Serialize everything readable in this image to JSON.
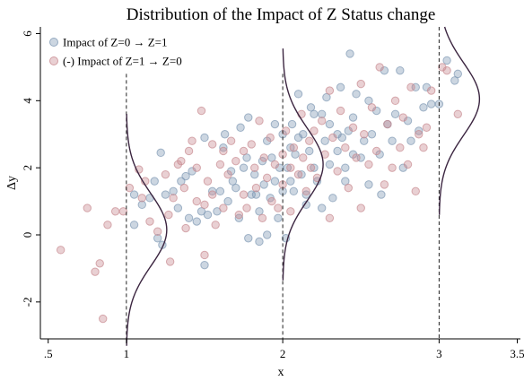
{
  "chart_data": {
    "type": "scatter",
    "title": "Distribution of the Impact of Z Status change",
    "xlabel": "x",
    "ylabel": "Δy",
    "xlim": [
      0.45,
      3.52
    ],
    "ylim": [
      -3.1,
      6.2
    ],
    "x_ticks": [
      0.5,
      1,
      2,
      3,
      3.5
    ],
    "x_tick_labels": [
      ".5",
      "1",
      "2",
      "3",
      "3.5"
    ],
    "y_ticks": [
      -2,
      0,
      2,
      4,
      6
    ],
    "y_tick_labels": [
      "-2",
      "0",
      "2",
      "4",
      "6"
    ],
    "legend_position": "top-left",
    "grid": false,
    "series": [
      {
        "name": "Impact of Z=0 → Z=1",
        "color": "#7f98b4",
        "points": [
          [
            1.05,
            0.3
          ],
          [
            1.05,
            1.2
          ],
          [
            1.1,
            0.9
          ],
          [
            1.15,
            1.1
          ],
          [
            1.18,
            1.6
          ],
          [
            1.2,
            -0.1
          ],
          [
            1.22,
            2.45
          ],
          [
            1.25,
            1.2
          ],
          [
            1.23,
            -0.3
          ],
          [
            1.3,
            1.3
          ],
          [
            1.33,
            0.8
          ],
          [
            1.35,
            1.6
          ],
          [
            1.38,
            1.75
          ],
          [
            1.4,
            0.5
          ],
          [
            1.42,
            1.9
          ],
          [
            1.45,
            0.4
          ],
          [
            1.48,
            0.7
          ],
          [
            1.5,
            2.9
          ],
          [
            1.5,
            -0.9
          ],
          [
            1.52,
            0.6
          ],
          [
            1.55,
            1.3
          ],
          [
            1.58,
            0.7
          ],
          [
            1.6,
            1.3
          ],
          [
            1.62,
            2.6
          ],
          [
            1.63,
            3.0
          ],
          [
            1.65,
            1.0
          ],
          [
            1.67,
            1.9
          ],
          [
            1.68,
            1.6
          ],
          [
            1.7,
            1.4
          ],
          [
            1.72,
            0.5
          ],
          [
            1.73,
            3.2
          ],
          [
            1.75,
            2.0
          ],
          [
            1.77,
            2.3
          ],
          [
            1.78,
            3.5
          ],
          [
            1.78,
            -0.1
          ],
          [
            1.8,
            1.2
          ],
          [
            1.82,
            1.8
          ],
          [
            1.83,
            1.2
          ],
          [
            1.85,
            0.7
          ],
          [
            1.85,
            -0.2
          ],
          [
            1.87,
            2.2
          ],
          [
            1.88,
            1.5
          ],
          [
            1.9,
            2.8
          ],
          [
            1.9,
            0.0
          ],
          [
            1.92,
            1.1
          ],
          [
            1.93,
            2.3
          ],
          [
            1.95,
            1.6
          ],
          [
            1.95,
            3.3
          ],
          [
            1.97,
            0.5
          ],
          [
            1.98,
            2.0
          ],
          [
            2.0,
            3.0
          ],
          [
            2.0,
            1.3
          ],
          [
            2.02,
            -0.1
          ],
          [
            2.03,
            2.0
          ],
          [
            2.05,
            1.6
          ],
          [
            2.05,
            2.6
          ],
          [
            2.06,
            3.3
          ],
          [
            2.07,
            1.3
          ],
          [
            2.08,
            2.4
          ],
          [
            2.1,
            2.9
          ],
          [
            2.1,
            4.2
          ],
          [
            2.12,
            1.8
          ],
          [
            2.13,
            3.0
          ],
          [
            2.15,
            1.2
          ],
          [
            2.15,
            0.9
          ],
          [
            2.17,
            2.5
          ],
          [
            2.18,
            3.8
          ],
          [
            2.2,
            3.6
          ],
          [
            2.2,
            2.0
          ],
          [
            2.22,
            1.6
          ],
          [
            2.25,
            3.6
          ],
          [
            2.25,
            0.8
          ],
          [
            2.27,
            2.8
          ],
          [
            2.28,
            4.1
          ],
          [
            2.3,
            2.1
          ],
          [
            2.3,
            3.3
          ],
          [
            2.32,
            1.1
          ],
          [
            2.35,
            2.5
          ],
          [
            2.35,
            3.0
          ],
          [
            2.37,
            4.4
          ],
          [
            2.38,
            2.9
          ],
          [
            2.4,
            1.6
          ],
          [
            2.4,
            2.0
          ],
          [
            2.42,
            3.1
          ],
          [
            2.43,
            5.4
          ],
          [
            2.45,
            3.5
          ],
          [
            2.45,
            2.4
          ],
          [
            2.47,
            4.2
          ],
          [
            2.5,
            2.3
          ],
          [
            2.52,
            2.8
          ],
          [
            2.55,
            4.0
          ],
          [
            2.55,
            1.5
          ],
          [
            2.57,
            3.0
          ],
          [
            2.6,
            3.7
          ],
          [
            2.62,
            2.4
          ],
          [
            2.63,
            1.2
          ],
          [
            2.65,
            4.9
          ],
          [
            2.67,
            3.3
          ],
          [
            2.7,
            2.8
          ],
          [
            2.72,
            3.6
          ],
          [
            2.75,
            4.9
          ],
          [
            2.77,
            2.0
          ],
          [
            2.8,
            3.4
          ],
          [
            2.82,
            2.8
          ],
          [
            2.85,
            4.4
          ],
          [
            2.87,
            3.1
          ],
          [
            2.9,
            3.8
          ],
          [
            2.92,
            4.4
          ],
          [
            2.95,
            3.9
          ],
          [
            3.0,
            3.9
          ],
          [
            3.05,
            5.2
          ],
          [
            3.1,
            4.6
          ],
          [
            3.12,
            4.8
          ]
        ]
      },
      {
        "name": "(-) Impact of Z=1 → Z=0",
        "color": "#c88a90",
        "points": [
          [
            0.58,
            -0.45
          ],
          [
            0.75,
            0.8
          ],
          [
            0.8,
            -1.1
          ],
          [
            0.83,
            -0.85
          ],
          [
            0.85,
            -2.5
          ],
          [
            0.88,
            0.3
          ],
          [
            0.93,
            0.7
          ],
          [
            0.98,
            0.7
          ],
          [
            1.02,
            1.4
          ],
          [
            1.08,
            1.95
          ],
          [
            1.1,
            1.1
          ],
          [
            1.12,
            1.6
          ],
          [
            1.15,
            0.4
          ],
          [
            1.2,
            0.1
          ],
          [
            1.25,
            1.8
          ],
          [
            1.27,
            0.6
          ],
          [
            1.28,
            -0.8
          ],
          [
            1.3,
            1.1
          ],
          [
            1.33,
            2.1
          ],
          [
            1.35,
            2.2
          ],
          [
            1.37,
            1.4
          ],
          [
            1.38,
            0.2
          ],
          [
            1.4,
            2.5
          ],
          [
            1.42,
            2.8
          ],
          [
            1.45,
            1.0
          ],
          [
            1.45,
            2.0
          ],
          [
            1.48,
            3.7
          ],
          [
            1.5,
            -0.6
          ],
          [
            1.5,
            0.9
          ],
          [
            1.52,
            1.6
          ],
          [
            1.55,
            2.7
          ],
          [
            1.55,
            1.2
          ],
          [
            1.57,
            0.3
          ],
          [
            1.6,
            2.1
          ],
          [
            1.62,
            2.5
          ],
          [
            1.62,
            0.8
          ],
          [
            1.65,
            1.8
          ],
          [
            1.67,
            2.8
          ],
          [
            1.7,
            2.2
          ],
          [
            1.72,
            0.6
          ],
          [
            1.75,
            2.5
          ],
          [
            1.75,
            1.2
          ],
          [
            1.77,
            0.8
          ],
          [
            1.8,
            2.7
          ],
          [
            1.82,
            2.0
          ],
          [
            1.83,
            1.4
          ],
          [
            1.85,
            3.4
          ],
          [
            1.87,
            0.5
          ],
          [
            1.88,
            2.3
          ],
          [
            1.9,
            1.7
          ],
          [
            1.92,
            2.9
          ],
          [
            1.93,
            1.0
          ],
          [
            1.95,
            2.1
          ],
          [
            1.97,
            0.8
          ],
          [
            2.0,
            2.4
          ],
          [
            2.0,
            1.5
          ],
          [
            2.02,
            3.1
          ],
          [
            2.05,
            2.0
          ],
          [
            2.05,
            0.7
          ],
          [
            2.07,
            2.6
          ],
          [
            2.1,
            1.8
          ],
          [
            2.12,
            3.6
          ],
          [
            2.13,
            2.3
          ],
          [
            2.15,
            1.3
          ],
          [
            2.17,
            2.8
          ],
          [
            2.18,
            2.0
          ],
          [
            2.2,
            3.1
          ],
          [
            2.22,
            1.7
          ],
          [
            2.25,
            3.4
          ],
          [
            2.27,
            2.4
          ],
          [
            2.3,
            4.3
          ],
          [
            2.3,
            0.5
          ],
          [
            2.32,
            2.9
          ],
          [
            2.35,
            1.9
          ],
          [
            2.37,
            3.7
          ],
          [
            2.4,
            2.6
          ],
          [
            2.42,
            1.4
          ],
          [
            2.45,
            3.2
          ],
          [
            2.47,
            2.3
          ],
          [
            2.5,
            4.5
          ],
          [
            2.5,
            0.8
          ],
          [
            2.52,
            3.0
          ],
          [
            2.55,
            2.1
          ],
          [
            2.57,
            3.8
          ],
          [
            2.6,
            2.5
          ],
          [
            2.62,
            5.0
          ],
          [
            2.65,
            1.5
          ],
          [
            2.67,
            3.3
          ],
          [
            2.7,
            2.0
          ],
          [
            2.72,
            4.0
          ],
          [
            2.75,
            2.6
          ],
          [
            2.77,
            3.5
          ],
          [
            2.8,
            2.1
          ],
          [
            2.82,
            4.4
          ],
          [
            2.85,
            1.3
          ],
          [
            2.87,
            3.0
          ],
          [
            2.9,
            2.6
          ],
          [
            2.92,
            3.2
          ],
          [
            2.95,
            4.3
          ],
          [
            3.02,
            5.0
          ],
          [
            3.05,
            4.9
          ],
          [
            3.12,
            3.6
          ]
        ]
      }
    ],
    "density_curves": [
      {
        "x": 1,
        "color": "#3b2540"
      },
      {
        "x": 2,
        "color": "#3b2540"
      },
      {
        "x": 3,
        "color": "#3b2540"
      }
    ]
  }
}
